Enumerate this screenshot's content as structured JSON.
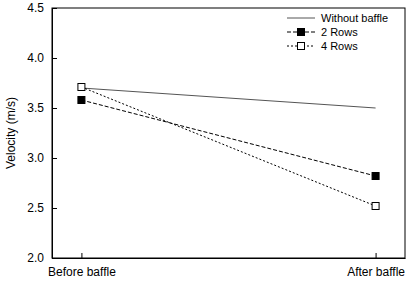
{
  "chart_data": {
    "type": "line",
    "ylabel": "Velocity (m/s)",
    "categories": [
      "Before baffle",
      "After baffle"
    ],
    "series": [
      {
        "name": "Without baffle",
        "color": "#555555",
        "line_style": "solid",
        "marker": "none",
        "values": [
          3.7,
          3.5
        ]
      },
      {
        "name": "2 Rows",
        "color": "#000000",
        "line_style": "dashed",
        "marker": "square",
        "values": [
          3.58,
          2.82
        ]
      },
      {
        "name": "4 Rows",
        "color": "#000000",
        "line_style": "dotted",
        "marker": "square-open",
        "values": [
          3.71,
          2.52
        ]
      }
    ],
    "ylim": [
      2.0,
      4.5
    ],
    "yticks": [
      {
        "value": 2.0,
        "label": "2.0"
      },
      {
        "value": 2.5,
        "label": "2.5"
      },
      {
        "value": 3.0,
        "label": "3.0"
      },
      {
        "value": 3.5,
        "label": "3.5"
      },
      {
        "value": 4.0,
        "label": "4.0"
      },
      {
        "value": 4.5,
        "label": "4.5"
      }
    ],
    "grid": false,
    "legend": "upper-right"
  }
}
